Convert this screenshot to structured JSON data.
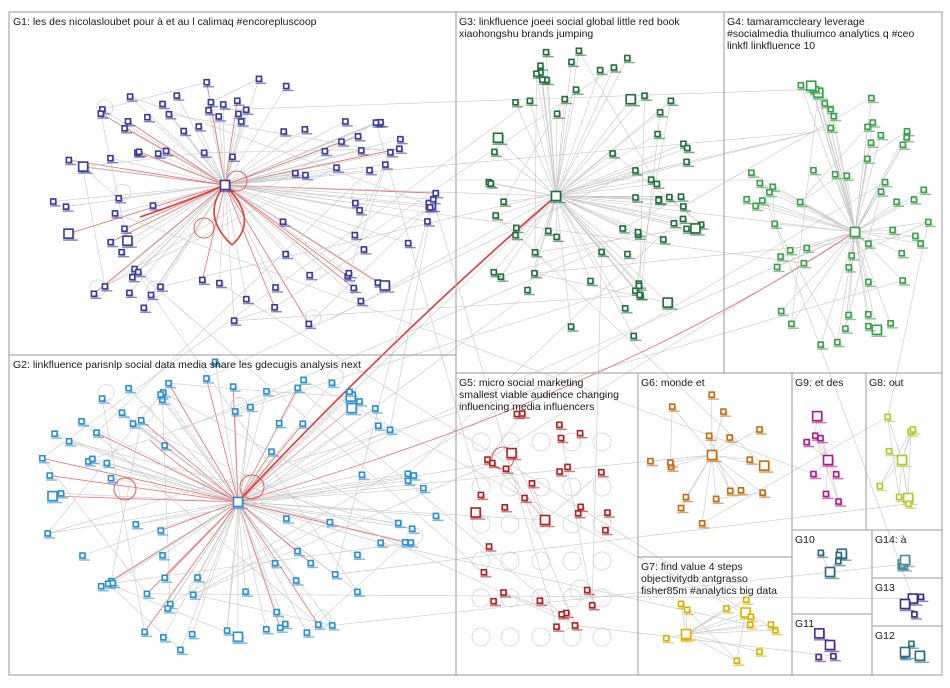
{
  "image": {
    "width": 950,
    "height": 688
  },
  "groups": [
    {
      "id": "G1",
      "label": "G1: les des nicolasloubet pour à et au l calimaq #encorepluscoop",
      "color": "#3a3a9a"
    },
    {
      "id": "G2",
      "label": "G2: linkfluence parisnlp social data media share les gdecugis analysis next",
      "color": "#2a8fd0"
    },
    {
      "id": "G3",
      "label": "G3: linkfluence joeei social global little red book",
      "label2": "xiaohongshu brands jumping",
      "color": "#1f6f3a"
    },
    {
      "id": "G4",
      "label": "G4: tamaramccleary leverage",
      "label2": "#socialmedia thuliumco analytics q #ceo",
      "label3": "linkfl linkfluence 10",
      "color": "#3aa04a"
    },
    {
      "id": "G5",
      "label": "G5: micro social marketing",
      "label2": "smallest viable audience changing",
      "label3": "influencing media influencers",
      "color": "#b02020"
    },
    {
      "id": "G6",
      "label": "G6: monde et",
      "color": "#c46a10"
    },
    {
      "id": "G7",
      "label": "G7: find value 4 steps",
      "label2": "objectivitydb antgrasso",
      "label3": "fisher85m #analytics big data",
      "color": "#d8b400"
    },
    {
      "id": "G8",
      "label": "G8: out",
      "color": "#b5c82a"
    },
    {
      "id": "G9",
      "label": "G9: et des",
      "color": "#b0188a"
    },
    {
      "id": "G10",
      "label": "G10",
      "color": "#2a6a7a"
    },
    {
      "id": "G11",
      "label": "G11",
      "color": "#4a2a8a"
    },
    {
      "id": "G12",
      "label": "G12",
      "color": "#2a6a8a"
    },
    {
      "id": "G13",
      "label": "G13",
      "color": "#3a2a8a"
    },
    {
      "id": "G14",
      "label": "G14: à",
      "color": "#4a8a9a"
    }
  ]
}
